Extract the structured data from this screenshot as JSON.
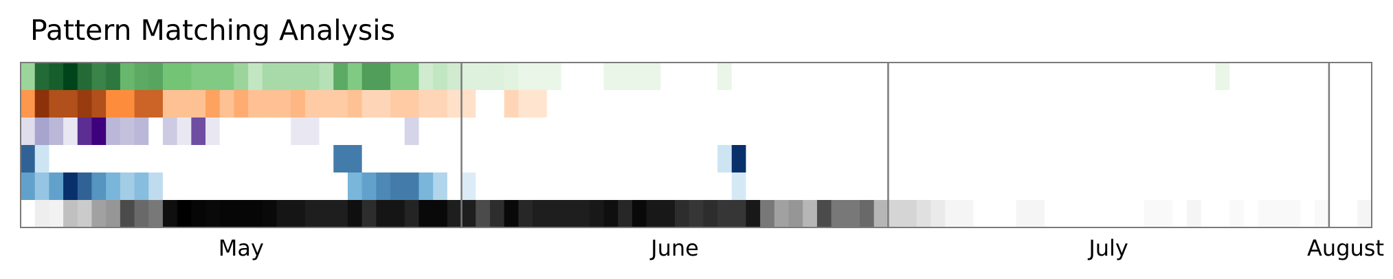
{
  "chart_data": {
    "type": "heatmap",
    "title": "Pattern Matching Analysis",
    "x_start": "2024-05-01",
    "months": [
      "May",
      "June",
      "July",
      "August"
    ],
    "grid": false,
    "legend": "none",
    "row_colors": [
      {
        "light": "#f7fcf5",
        "mid": "#74c476",
        "dark": "#00441b"
      },
      {
        "light": "#fff5eb",
        "mid": "#fd8d3c",
        "dark": "#7f2704"
      },
      {
        "light": "#fcfbfd",
        "mid": "#9e9ac8",
        "dark": "#3f007d"
      },
      {
        "light": "#f7fbff",
        "mid": "#6baed6",
        "dark": "#08306b"
      },
      {
        "light": "#f7fbff",
        "mid": "#6baed6",
        "dark": "#08306b"
      },
      {
        "light": "#ffffff",
        "mid": "#969696",
        "dark": "#000000"
      }
    ],
    "rows": [
      [
        0.35,
        0.85,
        0.9,
        1.0,
        0.85,
        0.75,
        0.8,
        0.55,
        0.6,
        0.62,
        0.5,
        0.5,
        0.45,
        0.45,
        0.45,
        0.35,
        0.2,
        0.3,
        0.3,
        0.3,
        0.3,
        0.25,
        0.6,
        0.45,
        0.65,
        0.65,
        0.45,
        0.45,
        0.15,
        0.2,
        0.15,
        0.1,
        0.1,
        0.1,
        0.08,
        0.05,
        0.05,
        0.05,
        0,
        0,
        0,
        0.05,
        0.05,
        0.05,
        0.05,
        0,
        0,
        0,
        0,
        0.05,
        0,
        0,
        0,
        0,
        0,
        0,
        0,
        0,
        0,
        0,
        0,
        0,
        0,
        0,
        0,
        0,
        0,
        0,
        0,
        0,
        0,
        0,
        0,
        0,
        0,
        0,
        0,
        0,
        0,
        0,
        0,
        0,
        0,
        0,
        0.05,
        0,
        0,
        0,
        0,
        0,
        0,
        0,
        0,
        0,
        0
      ],
      [
        0.45,
        0.95,
        0.8,
        0.8,
        0.9,
        0.8,
        0.5,
        0.5,
        0.7,
        0.7,
        0.25,
        0.25,
        0.25,
        0.4,
        0.25,
        0.35,
        0.25,
        0.25,
        0.25,
        0.3,
        0.2,
        0.2,
        0.2,
        0.25,
        0.15,
        0.15,
        0.2,
        0.2,
        0.15,
        0.15,
        0.1,
        0.1,
        0,
        0,
        0.15,
        0.08,
        0.08,
        0,
        0,
        0,
        0,
        0,
        0,
        0,
        0,
        0,
        0,
        0,
        0,
        0,
        0,
        0,
        0,
        0,
        0,
        0,
        0,
        0,
        0,
        0,
        0,
        0,
        0,
        0,
        0,
        0,
        0,
        0,
        0,
        0,
        0,
        0,
        0,
        0,
        0,
        0,
        0,
        0,
        0,
        0,
        0,
        0,
        0,
        0,
        0,
        0,
        0,
        0,
        0,
        0,
        0,
        0,
        0,
        0,
        0
      ],
      [
        0.15,
        0.45,
        0.35,
        0.1,
        0.85,
        1.0,
        0.35,
        0.3,
        0.35,
        0,
        0.25,
        0.1,
        0.75,
        0.1,
        0,
        0,
        0,
        0,
        0,
        0.1,
        0.1,
        0,
        0,
        0,
        0,
        0,
        0,
        0.2,
        0,
        0,
        0,
        0,
        0,
        0,
        0,
        0,
        0,
        0,
        0,
        0,
        0,
        0,
        0,
        0,
        0,
        0,
        0,
        0,
        0,
        0,
        0,
        0,
        0,
        0,
        0,
        0,
        0,
        0,
        0,
        0,
        0,
        0,
        0,
        0,
        0,
        0,
        0,
        0,
        0,
        0,
        0,
        0,
        0,
        0,
        0,
        0,
        0,
        0,
        0,
        0,
        0,
        0,
        0,
        0,
        0,
        0,
        0,
        0,
        0,
        0,
        0,
        0,
        0,
        0,
        0
      ],
      [
        0.8,
        0.15,
        0,
        0,
        0,
        0,
        0,
        0,
        0,
        0,
        0,
        0,
        0,
        0,
        0,
        0,
        0,
        0,
        0,
        0,
        0,
        0,
        0.7,
        0.7,
        0,
        0,
        0,
        0,
        0,
        0,
        0,
        0,
        0,
        0,
        0,
        0,
        0,
        0,
        0,
        0,
        0,
        0,
        0,
        0,
        0,
        0,
        0,
        0,
        0,
        0.15,
        1.0,
        0,
        0,
        0,
        0,
        0,
        0,
        0,
        0,
        0,
        0,
        0,
        0,
        0,
        0,
        0,
        0,
        0,
        0,
        0,
        0,
        0,
        0,
        0,
        0,
        0,
        0,
        0,
        0,
        0,
        0,
        0,
        0,
        0,
        0,
        0,
        0,
        0,
        0,
        0,
        0,
        0,
        0,
        0,
        0
      ],
      [
        0.55,
        0.35,
        0.55,
        1.0,
        0.8,
        0.6,
        0.45,
        0.3,
        0.4,
        0.2,
        0,
        0,
        0,
        0,
        0,
        0,
        0,
        0,
        0,
        0,
        0,
        0,
        0,
        0.45,
        0.55,
        0.65,
        0.7,
        0.7,
        0.45,
        0.25,
        0,
        0.1,
        0,
        0,
        0,
        0,
        0,
        0,
        0,
        0,
        0,
        0,
        0,
        0,
        0,
        0,
        0,
        0,
        0,
        0,
        0.12,
        0,
        0,
        0,
        0,
        0,
        0,
        0,
        0,
        0,
        0,
        0,
        0,
        0,
        0,
        0,
        0,
        0,
        0,
        0,
        0,
        0,
        0,
        0,
        0,
        0,
        0,
        0,
        0,
        0,
        0,
        0,
        0,
        0,
        0,
        0,
        0,
        0,
        0,
        0,
        0,
        0,
        0,
        0,
        0
      ],
      [
        0,
        0.08,
        0.06,
        0.3,
        0.25,
        0.45,
        0.5,
        0.75,
        0.65,
        0.6,
        0.95,
        1.0,
        0.98,
        0.97,
        0.98,
        0.98,
        0.98,
        0.97,
        0.93,
        0.93,
        0.9,
        0.9,
        0.9,
        0.95,
        0.85,
        0.93,
        0.93,
        0.88,
        0.97,
        0.97,
        0.9,
        0.9,
        0.75,
        0.85,
        0.97,
        0.87,
        0.9,
        0.9,
        0.9,
        0.9,
        0.92,
        0.95,
        0.87,
        0.97,
        0.92,
        0.92,
        0.85,
        0.82,
        0.85,
        0.82,
        0.82,
        0.92,
        0.6,
        0.45,
        0.5,
        0.35,
        0.75,
        0.6,
        0.6,
        0.65,
        0.35,
        0.2,
        0.2,
        0.15,
        0.1,
        0.05,
        0.05,
        0,
        0,
        0,
        0.05,
        0.05,
        0,
        0,
        0,
        0,
        0,
        0,
        0,
        0.03,
        0.03,
        0,
        0.05,
        0,
        0,
        0.03,
        0,
        0.03,
        0.03,
        0.03,
        0,
        0.03,
        0,
        0,
        0.05
      ]
    ]
  }
}
